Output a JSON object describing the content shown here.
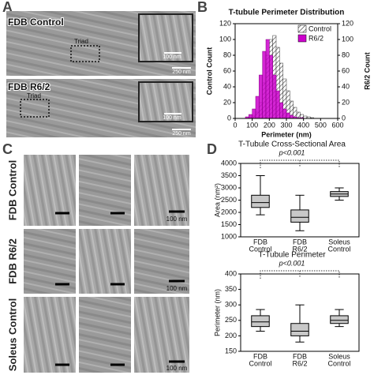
{
  "panel_labels": [
    "A",
    "B",
    "C",
    "D"
  ],
  "panel_a": {
    "images": [
      {
        "label": "FDB Control",
        "triad": "Triad",
        "inset_scale": "100 nm",
        "scale": "250 nm"
      },
      {
        "label": "FDB R6/2",
        "triad": "Triad",
        "inset_scale": "100 nm",
        "scale": "250 nm"
      }
    ]
  },
  "panel_c": {
    "row_labels": [
      "FDB Control",
      "FDB R6/2",
      "Soleus Control"
    ],
    "scale_labels": [
      "100 nm",
      "100 nm",
      "100 nm"
    ]
  },
  "chart_data": [
    {
      "type": "histogram",
      "title": "T-tubule Perimeter Distribution",
      "xlabel": "Perimeter (nm)",
      "ylabel": "Control Count",
      "y2label": "R6/2 Count",
      "bins": [
        60,
        80,
        100,
        120,
        140,
        160,
        180,
        200,
        220,
        240,
        260,
        280,
        300,
        320,
        340,
        360,
        380,
        400,
        420,
        440,
        460
      ],
      "series": [
        {
          "name": "Control",
          "color": "#333333",
          "hatch": true,
          "values": [
            0,
            1,
            3,
            8,
            20,
            45,
            80,
            100,
            105,
            90,
            70,
            50,
            35,
            22,
            14,
            8,
            5,
            3,
            2,
            1
          ]
        },
        {
          "name": "R6/2",
          "color": "#cc00cc",
          "axis": "y2",
          "values": [
            2,
            5,
            12,
            28,
            55,
            85,
            100,
            80,
            55,
            35,
            20,
            12,
            7,
            4,
            2,
            1,
            1,
            0,
            0,
            0
          ]
        }
      ],
      "xlim": [
        0,
        600
      ],
      "xticks": [
        0,
        100,
        200,
        300,
        400,
        500,
        600
      ],
      "ylim": [
        0,
        120
      ],
      "yticks": [
        0,
        20,
        40,
        60,
        80,
        100,
        120
      ],
      "y2lim": [
        0,
        120
      ],
      "y2ticks": [
        0,
        20,
        40,
        60,
        80,
        100,
        120
      ],
      "legend": "upper right"
    },
    {
      "type": "box",
      "title": "T-Tubule Cross-Sectional Area",
      "annotation": "p<0.001",
      "ylabel": "Area (nm²)",
      "categories": [
        [
          "FDB",
          "Control"
        ],
        [
          "FDB",
          "R6/2"
        ],
        [
          "Soleus",
          "Control"
        ]
      ],
      "color": "#c8c8c8",
      "boxes": [
        {
          "min": 1900,
          "q1": 2200,
          "median": 2400,
          "q3": 2700,
          "max": 3500
        },
        {
          "min": 1250,
          "q1": 1600,
          "median": 1800,
          "q3": 2100,
          "max": 2700
        },
        {
          "min": 2500,
          "q1": 2650,
          "median": 2750,
          "q3": 2850,
          "max": 3000
        }
      ],
      "ylim": [
        1000,
        4000
      ],
      "yticks": [
        1000,
        1500,
        2000,
        2500,
        3000,
        3500,
        4000
      ]
    },
    {
      "type": "box",
      "title": "T-Tubule Perimeter",
      "annotation": "p<0.001",
      "ylabel": "Perimeter (nm)",
      "categories": [
        [
          "FDB",
          "Control"
        ],
        [
          "FDB",
          "R6/2"
        ],
        [
          "Soleus",
          "Control"
        ]
      ],
      "color": "#c8c8c8",
      "boxes": [
        {
          "min": 215,
          "q1": 230,
          "median": 245,
          "q3": 265,
          "max": 285
        },
        {
          "min": 180,
          "q1": 200,
          "median": 215,
          "q3": 240,
          "max": 300
        },
        {
          "min": 230,
          "q1": 240,
          "median": 250,
          "q3": 265,
          "max": 285
        }
      ],
      "ylim": [
        150,
        400
      ],
      "yticks": [
        150,
        200,
        250,
        300,
        350,
        400
      ]
    }
  ]
}
